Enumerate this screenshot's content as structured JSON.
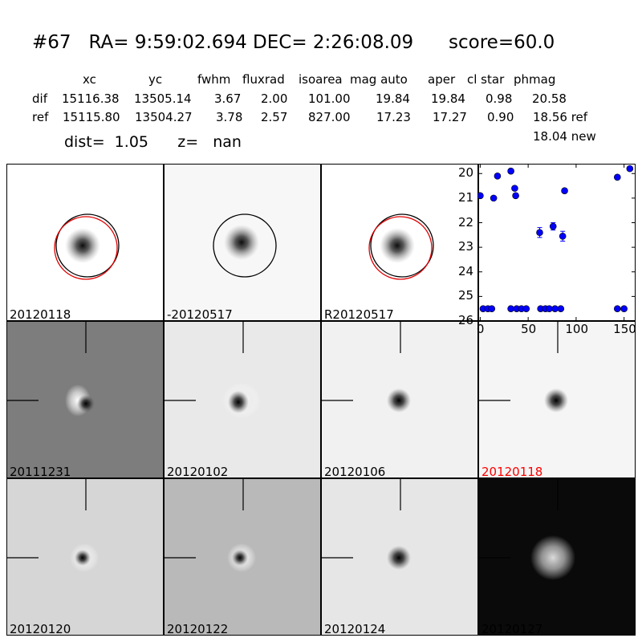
{
  "header": {
    "title": "#67   RA= 9:59:02.694 DEC= 2:26:08.09      score=60.0",
    "columns": [
      "xc",
      "yc",
      "fwhm",
      "fluxrad",
      "isoarea",
      "mag auto",
      "aper",
      "cl star",
      "phmag"
    ],
    "rows": [
      {
        "label": "dif",
        "values": [
          "15116.38",
          "13505.14",
          "3.67",
          "2.00",
          "101.00",
          "19.84",
          "19.84",
          "0.98",
          "20.58"
        ]
      },
      {
        "label": "ref",
        "values": [
          "15115.80",
          "13504.27",
          "3.78",
          "2.57",
          "827.00",
          "17.23",
          "17.27",
          "0.90",
          "18.56 ref"
        ]
      }
    ],
    "extra_phmag": "18.04 new",
    "dist_line": "dist=  1.05      z=   nan"
  },
  "panels_top": [
    {
      "label": "20120118",
      "bg": "#ffffff",
      "circles": [
        "black",
        "red"
      ]
    },
    {
      "label": "-20120517",
      "bg": "#f7f7f7",
      "circles": [
        "black"
      ]
    },
    {
      "label": "R20120517",
      "bg": "#ffffff",
      "circles": [
        "black",
        "red"
      ]
    }
  ],
  "panels_grid": [
    {
      "label": "20111231",
      "bg": "#7d7d7d",
      "label_color": "#000000",
      "style": "dipole-dark"
    },
    {
      "label": "20120102",
      "bg": "#e9e9e9",
      "label_color": "#000000",
      "style": "dipole-light"
    },
    {
      "label": "20120106",
      "bg": "#f1f1f1",
      "label_color": "#000000",
      "style": "star"
    },
    {
      "label": "20120118",
      "bg": "#f5f5f5",
      "label_color": "#ff0000",
      "style": "star"
    },
    {
      "label": "20120120",
      "bg": "#d6d6d6",
      "label_color": "#000000",
      "style": "ring"
    },
    {
      "label": "20120122",
      "bg": "#b9b9b9",
      "label_color": "#000000",
      "style": "ring-faint"
    },
    {
      "label": "20120124",
      "bg": "#e6e6e6",
      "label_color": "#000000",
      "style": "star"
    },
    {
      "label": "20120127",
      "bg": "#0a0a0a",
      "label_color": "#000000",
      "style": "bright"
    }
  ],
  "chart_data": {
    "type": "scatter",
    "title": "",
    "xlabel": "",
    "ylabel": "",
    "xlim": [
      -2,
      162
    ],
    "ylim": [
      26,
      19.6
    ],
    "y_inverted": true,
    "x_ticks": [
      "0",
      "50",
      "100",
      "150"
    ],
    "y_ticks": [
      "20",
      "21",
      "22",
      "23",
      "24",
      "25",
      "26"
    ],
    "marker_color": "#0000ff",
    "points": [
      {
        "x": 0,
        "y": 20.9
      },
      {
        "x": 3,
        "y": 25.5
      },
      {
        "x": 8,
        "y": 25.5
      },
      {
        "x": 12,
        "y": 25.5
      },
      {
        "x": 14,
        "y": 21.0
      },
      {
        "x": 18,
        "y": 20.1
      },
      {
        "x": 32,
        "y": 19.9
      },
      {
        "x": 32,
        "y": 25.5
      },
      {
        "x": 36,
        "y": 20.6
      },
      {
        "x": 37,
        "y": 20.9
      },
      {
        "x": 38,
        "y": 25.5
      },
      {
        "x": 43,
        "y": 25.5
      },
      {
        "x": 48,
        "y": 25.5
      },
      {
        "x": 62,
        "y": 22.4,
        "err": 0.2
      },
      {
        "x": 63,
        "y": 25.5
      },
      {
        "x": 68,
        "y": 25.5
      },
      {
        "x": 72,
        "y": 25.5
      },
      {
        "x": 76,
        "y": 22.15,
        "err": 0.15
      },
      {
        "x": 78,
        "y": 25.5
      },
      {
        "x": 84,
        "y": 25.5
      },
      {
        "x": 86,
        "y": 22.55,
        "err": 0.2
      },
      {
        "x": 88,
        "y": 20.7
      },
      {
        "x": 143,
        "y": 20.15
      },
      {
        "x": 143,
        "y": 25.5
      },
      {
        "x": 150,
        "y": 25.5
      },
      {
        "x": 156,
        "y": 19.8
      }
    ]
  }
}
